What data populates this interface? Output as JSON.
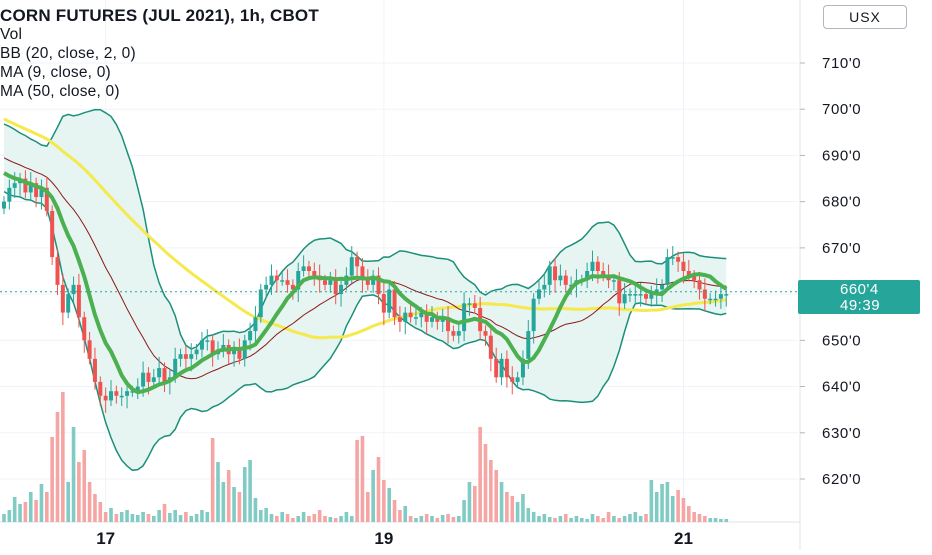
{
  "legend": {
    "title": "CORN FUTURES (JUL 2021), 1h, CBOT",
    "vol": "Vol",
    "bb": "BB (20, close, 2, 0)",
    "ma9": "MA (9, close, 0)",
    "ma50": "MA (50, close, 0)"
  },
  "currency_button": "USX",
  "price_tag": {
    "price": "660'4",
    "countdown": "49:39"
  },
  "colors": {
    "up": "#26a69a",
    "down": "#ef5350",
    "bb": "#1b8f7a",
    "bb_fill": "#e3f3f1",
    "ma9": "#4caf50",
    "ma50": "#f5e94c",
    "ma_thin": "#8b1a1a",
    "grid": "#f0f3fa"
  },
  "chart_data": {
    "type": "candlestick",
    "title": "CORN FUTURES (JUL 2021), 1h, CBOT",
    "y_ticks": [
      "710'0",
      "700'0",
      "690'0",
      "680'0",
      "670'0",
      "660'0",
      "650'0",
      "640'0",
      "630'0",
      "620'0"
    ],
    "y_tick_values": [
      710,
      700,
      690,
      680,
      670,
      660,
      650,
      640,
      630,
      620
    ],
    "ylim": [
      612,
      721
    ],
    "x_ticks": [
      {
        "label": "17",
        "index": 19
      },
      {
        "label": "19",
        "index": 71
      },
      {
        "label": "21",
        "index": 127
      }
    ],
    "last_price": 660.5,
    "closes": [
      680,
      683,
      684,
      685,
      682,
      684,
      681,
      683,
      678,
      668,
      662,
      656,
      660,
      662,
      655,
      650,
      646,
      641,
      638,
      637,
      639,
      638,
      638,
      639,
      639,
      640,
      643,
      641,
      642,
      644,
      641,
      642,
      646,
      647,
      646,
      647,
      648,
      650,
      650,
      647,
      648,
      649,
      647,
      648,
      646,
      650,
      652,
      655,
      661,
      662,
      664,
      663,
      663,
      662,
      661,
      665,
      666,
      665,
      664,
      663,
      662,
      663,
      660,
      662,
      664,
      668,
      666,
      663,
      662,
      664,
      660,
      656,
      661,
      655,
      654,
      656,
      655,
      655,
      656,
      654,
      655,
      654,
      655,
      652,
      651,
      652,
      658,
      658,
      657,
      652,
      651,
      646,
      642,
      646,
      642,
      641,
      642,
      646,
      652,
      659,
      661,
      662,
      666,
      663,
      664,
      662,
      662,
      663,
      663,
      665,
      667,
      665,
      664,
      663,
      663,
      658,
      660,
      660,
      660,
      660,
      659,
      660,
      661,
      662,
      668,
      668,
      667,
      665,
      664,
      663,
      661,
      659,
      659,
      659,
      660,
      660
    ],
    "volume_heights": [
      8,
      12,
      25,
      18,
      20,
      30,
      22,
      38,
      30,
      85,
      110,
      130,
      40,
      95,
      60,
      72,
      40,
      28,
      20,
      10,
      14,
      8,
      10,
      12,
      8,
      7,
      10,
      8,
      6,
      12,
      18,
      9,
      12,
      7,
      10,
      6,
      8,
      12,
      10,
      84,
      60,
      40,
      52,
      35,
      30,
      55,
      62,
      24,
      12,
      14,
      8,
      6,
      10,
      8,
      4,
      6,
      10,
      6,
      8,
      12,
      6,
      5,
      4,
      6,
      10,
      6,
      82,
      86,
      30,
      52,
      65,
      42,
      34,
      22,
      12,
      16,
      6,
      4,
      6,
      8,
      6,
      4,
      7,
      8,
      5,
      6,
      22,
      40,
      36,
      95,
      78,
      62,
      52,
      40,
      30,
      26,
      20,
      28,
      14,
      10,
      6,
      8,
      5,
      4,
      6,
      8,
      4,
      6,
      4,
      3,
      8,
      6,
      4,
      10,
      6,
      4,
      6,
      8,
      10,
      6,
      8,
      42,
      30,
      38,
      40,
      26,
      32,
      24,
      16,
      10,
      8,
      6,
      4,
      4,
      3,
      3
    ]
  }
}
